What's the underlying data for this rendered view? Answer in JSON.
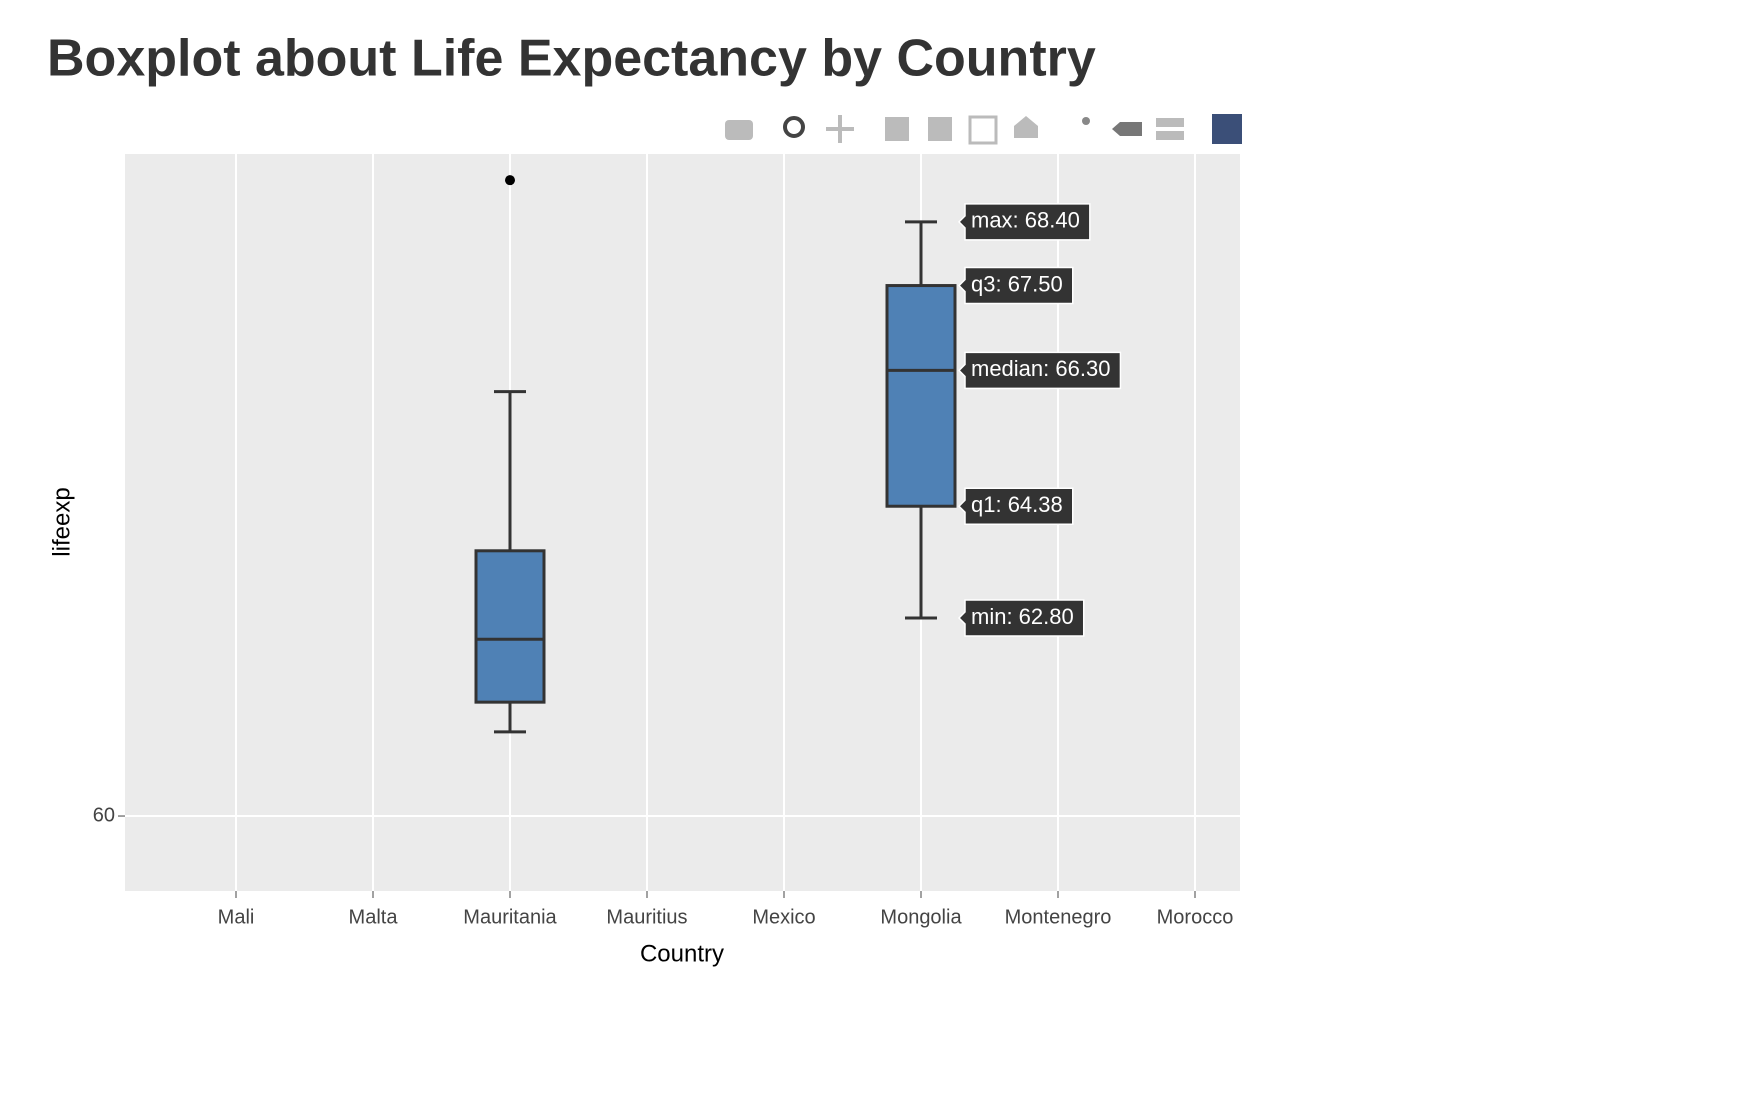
{
  "chart_data": {
    "type": "box",
    "title": "Boxplot about Life Expectancy by Country",
    "x_label": "Country",
    "y_label": "lifeexp",
    "categories": [
      "Mali",
      "Malta",
      "Mauritania",
      "Mauritius",
      "Mexico",
      "Mongolia",
      "Montenegro",
      "Morocco"
    ],
    "boxes": [
      {
        "category": "Mauritania",
        "min": 61.19,
        "q1": 61.61,
        "median": 62.5,
        "q3": 63.75,
        "max": 66.0,
        "outliers": [
          68.99
        ]
      },
      {
        "category": "Mongolia",
        "min": 62.8,
        "q1": 64.38,
        "median": 66.3,
        "q3": 67.5,
        "max": 68.4,
        "outliers": [],
        "value_labels": {
          "max": "max: 68.40",
          "q3": "q3: 67.50",
          "median": "median: 66.30",
          "q1": "q1: 64.38",
          "min": "min: 62.80"
        }
      }
    ],
    "color": "#4f81b5",
    "line_color": "#333333",
    "ylim": [
      58.94,
      69.36
    ],
    "yticks": [
      60
    ],
    "grid": true
  }
}
